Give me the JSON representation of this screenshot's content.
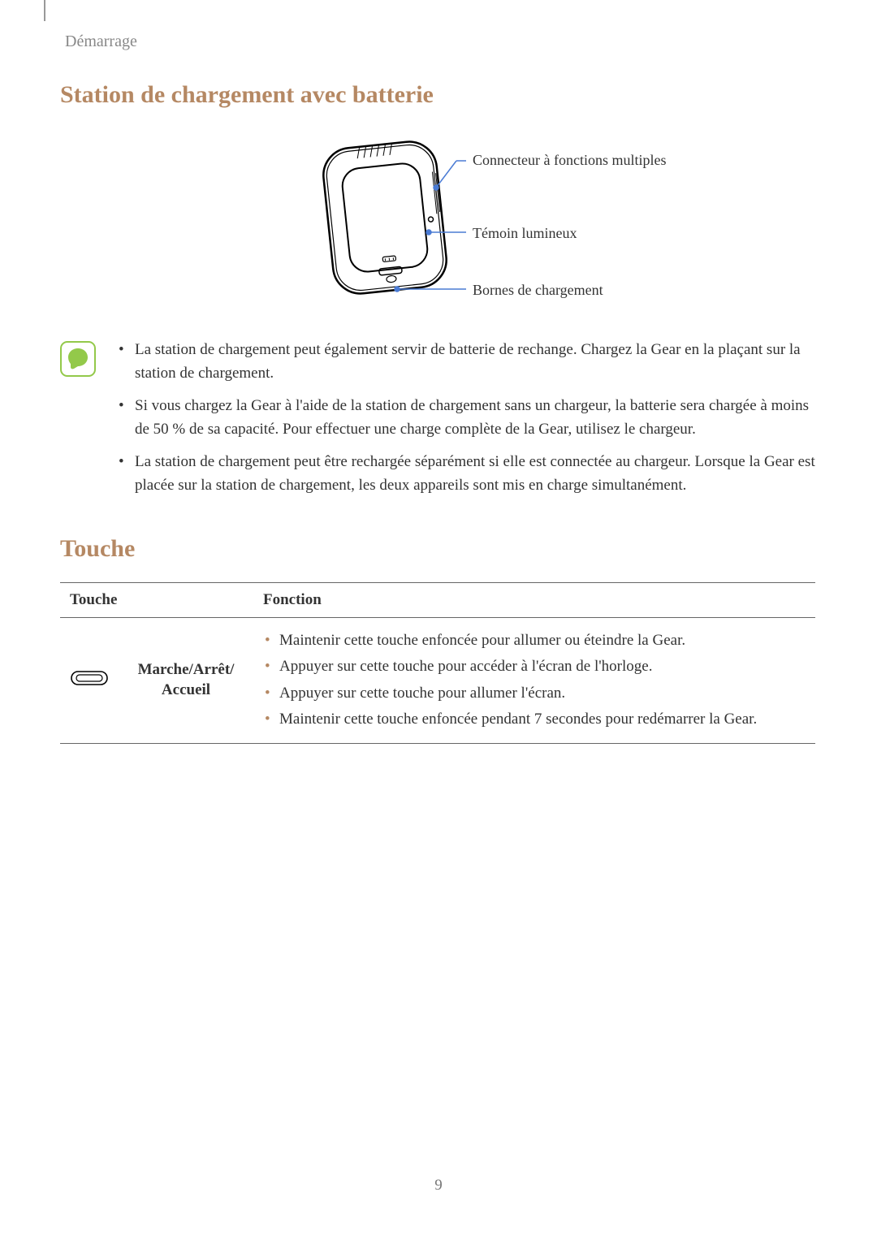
{
  "header": {
    "section": "Démarrage"
  },
  "section1": {
    "title": "Station de chargement avec batterie",
    "callouts": {
      "c1": "Connecteur à fonctions multiples",
      "c2": "Témoin lumineux",
      "c3": "Bornes de chargement"
    },
    "notes": [
      "La station de chargement peut également servir de batterie de rechange. Chargez la Gear en la plaçant sur la station de chargement.",
      "Si vous chargez la Gear à l'aide de la station de chargement sans un chargeur, la batterie sera chargée à moins de 50 % de sa capacité. Pour effectuer une charge complète de la Gear, utilisez le chargeur.",
      "La station de chargement peut être rechargée séparément si elle est connectée au chargeur. Lorsque la Gear est placée sur la station de chargement, les deux appareils sont mis en charge simultanément."
    ]
  },
  "section2": {
    "title": "Touche",
    "table": {
      "headers": {
        "col1": "Touche",
        "col2": "Fonction"
      },
      "row1": {
        "name": "Marche/Arrêt/\nAccueil",
        "functions": [
          "Maintenir cette touche enfoncée pour allumer ou éteindre la Gear.",
          "Appuyer sur cette touche pour accéder à l'écran de l'horloge.",
          "Appuyer sur cette touche pour allumer l'écran.",
          "Maintenir cette touche enfoncée pendant 7 secondes pour redémarrer la Gear."
        ]
      }
    }
  },
  "pageNumber": "9",
  "colors": {
    "accent": "#b58863",
    "noteIconFill": "#93c94a",
    "noteIconBg": "#ffffff",
    "calloutLine": "#4a7bd4",
    "text": "#333333"
  }
}
